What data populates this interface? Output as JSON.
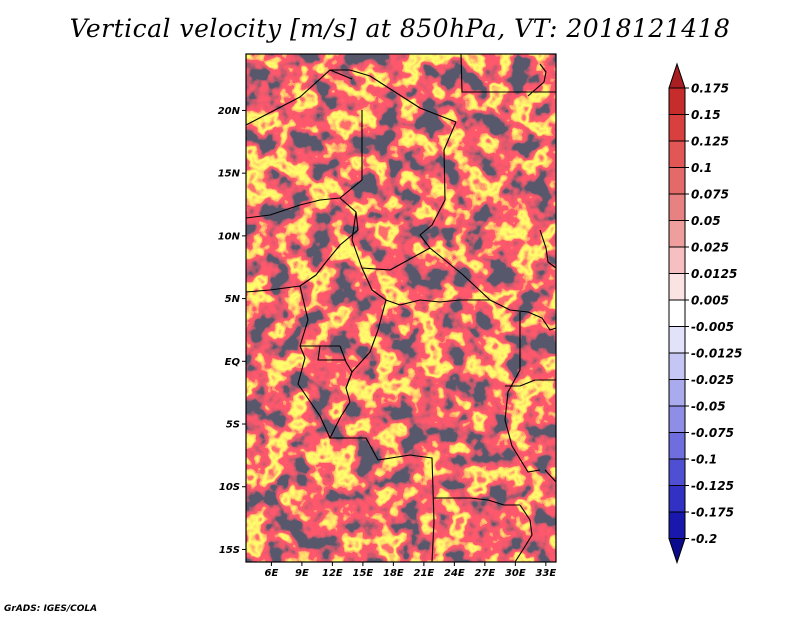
{
  "title": "Vertical velocity [m/s] at 850hPa, VT: 2018121418",
  "footer": "GrADS: IGES/COLA",
  "map": {
    "lon_range_deg": [
      3.5,
      34.0
    ],
    "lat_range_deg": [
      -16.0,
      24.5
    ],
    "lat_ticks": [
      {
        "value": 20,
        "label": "20N"
      },
      {
        "value": 15,
        "label": "15N"
      },
      {
        "value": 10,
        "label": "10N"
      },
      {
        "value": 5,
        "label": "5N"
      },
      {
        "value": 0,
        "label": "EQ"
      },
      {
        "value": -5,
        "label": "5S"
      },
      {
        "value": -10,
        "label": "10S"
      },
      {
        "value": -15,
        "label": "15S"
      }
    ],
    "lon_ticks": [
      {
        "value": 6,
        "label": "6E"
      },
      {
        "value": 9,
        "label": "9E"
      },
      {
        "value": 12,
        "label": "12E"
      },
      {
        "value": 15,
        "label": "15E"
      },
      {
        "value": 18,
        "label": "18E"
      },
      {
        "value": 21,
        "label": "21E"
      },
      {
        "value": 24,
        "label": "24E"
      },
      {
        "value": 27,
        "label": "27E"
      },
      {
        "value": 30,
        "label": "30E"
      },
      {
        "value": 33,
        "label": "33E"
      }
    ]
  },
  "colorbar": {
    "labels": [
      "0.175",
      "0.15",
      "0.125",
      "0.1",
      "0.075",
      "0.05",
      "0.025",
      "0.0125",
      "0.005",
      "-0.005",
      "-0.0125",
      "-0.025",
      "-0.05",
      "-0.075",
      "-0.1",
      "-0.125",
      "-0.175",
      "-0.2"
    ],
    "colors": [
      "#a81e22",
      "#c62c2c",
      "#d84040",
      "#e25656",
      "#e46a6a",
      "#e88282",
      "#ef9e9e",
      "#f6c0c0",
      "#fbe3e3",
      "#ffffff",
      "#e2e2fb",
      "#c6c6f5",
      "#aaaaee",
      "#8e8ee6",
      "#6e6edf",
      "#4f4fd3",
      "#3131c3",
      "#1818ad",
      "#0a0a8c"
    ]
  }
}
